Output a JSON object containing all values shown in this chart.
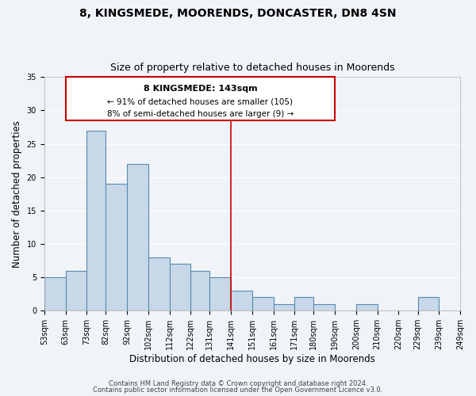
{
  "title": "8, KINGSMEDE, MOORENDS, DONCASTER, DN8 4SN",
  "subtitle": "Size of property relative to detached houses in Moorends",
  "xlabel": "Distribution of detached houses by size in Moorends",
  "ylabel": "Number of detached properties",
  "footnote1": "Contains HM Land Registry data © Crown copyright and database right 2024.",
  "footnote2": "Contains public sector information licensed under the Open Government Licence v3.0.",
  "bar_left_edges": [
    53,
    63,
    73,
    82,
    92,
    102,
    112,
    122,
    131,
    141,
    151,
    161,
    171,
    180,
    190,
    200,
    210,
    220,
    229,
    239
  ],
  "bar_widths": [
    10,
    10,
    9,
    10,
    10,
    10,
    10,
    9,
    10,
    10,
    10,
    10,
    9,
    10,
    10,
    10,
    10,
    9,
    10,
    10
  ],
  "bar_heights": [
    5,
    6,
    27,
    19,
    22,
    8,
    7,
    6,
    5,
    3,
    2,
    1,
    2,
    1,
    0,
    1,
    0,
    0,
    2,
    0
  ],
  "bar_color": "#c8d8e8",
  "bar_edgecolor": "#5a8ab0",
  "ylim": [
    0,
    35
  ],
  "yticks": [
    0,
    5,
    10,
    15,
    20,
    25,
    30,
    35
  ],
  "tick_labels": [
    "53sqm",
    "63sqm",
    "73sqm",
    "82sqm",
    "92sqm",
    "102sqm",
    "112sqm",
    "122sqm",
    "131sqm",
    "141sqm",
    "151sqm",
    "161sqm",
    "171sqm",
    "180sqm",
    "190sqm",
    "200sqm",
    "210sqm",
    "220sqm",
    "229sqm",
    "239sqm",
    "249sqm"
  ],
  "vline_x": 141,
  "vline_color": "#cc0000",
  "annotation_title": "8 KINGSMEDE: 143sqm",
  "annotation_line1": "← 91% of detached houses are smaller (105)",
  "annotation_line2": "8% of semi-detached houses are larger (9) →",
  "background_color": "#f0f4f8",
  "grid_color": "#ffffff",
  "title_fontsize": 10,
  "subtitle_fontsize": 9,
  "axis_label_fontsize": 8.5,
  "tick_fontsize": 7,
  "annotation_fontsize": 8,
  "footnote_fontsize": 6
}
